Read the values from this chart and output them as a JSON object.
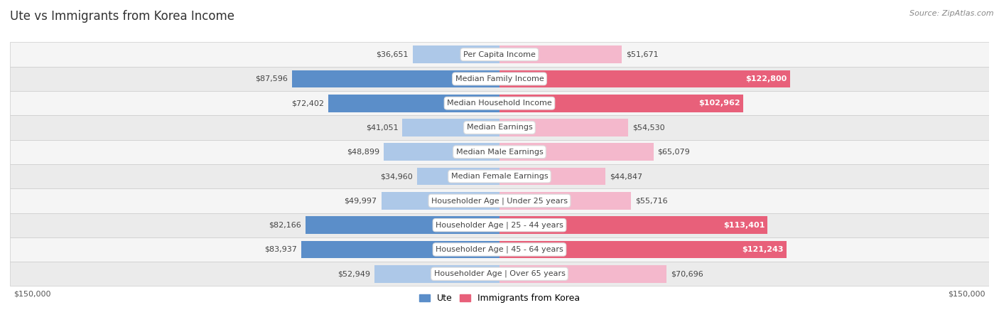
{
  "title": "Ute vs Immigrants from Korea Income",
  "source": "Source: ZipAtlas.com",
  "categories": [
    "Per Capita Income",
    "Median Family Income",
    "Median Household Income",
    "Median Earnings",
    "Median Male Earnings",
    "Median Female Earnings",
    "Householder Age | Under 25 years",
    "Householder Age | 25 - 44 years",
    "Householder Age | 45 - 64 years",
    "Householder Age | Over 65 years"
  ],
  "ute_values": [
    36651,
    87596,
    72402,
    41051,
    48899,
    34960,
    49997,
    82166,
    83937,
    52949
  ],
  "korea_values": [
    51671,
    122800,
    102962,
    54530,
    65079,
    44847,
    55716,
    113401,
    121243,
    70696
  ],
  "ute_labels": [
    "$36,651",
    "$87,596",
    "$72,402",
    "$41,051",
    "$48,899",
    "$34,960",
    "$49,997",
    "$82,166",
    "$83,937",
    "$52,949"
  ],
  "korea_labels": [
    "$51,671",
    "$122,800",
    "$102,962",
    "$54,530",
    "$65,079",
    "$44,847",
    "$55,716",
    "$113,401",
    "$121,243",
    "$70,696"
  ],
  "ute_color_light": "#adc8e8",
  "ute_color_mid": "#88aadd",
  "ute_color_dark": "#5b8ec9",
  "korea_color_light": "#f4b8cc",
  "korea_color_dark": "#e8607a",
  "max_value": 150000,
  "bg_color": "#ffffff",
  "row_bg_light": "#f5f5f5",
  "row_bg_dark": "#ebebeb",
  "legend_ute": "Ute",
  "legend_korea": "Immigrants from Korea",
  "axis_label_left": "$150,000",
  "axis_label_right": "$150,000",
  "ute_dark_threshold": 65000,
  "korea_dark_threshold": 100000
}
